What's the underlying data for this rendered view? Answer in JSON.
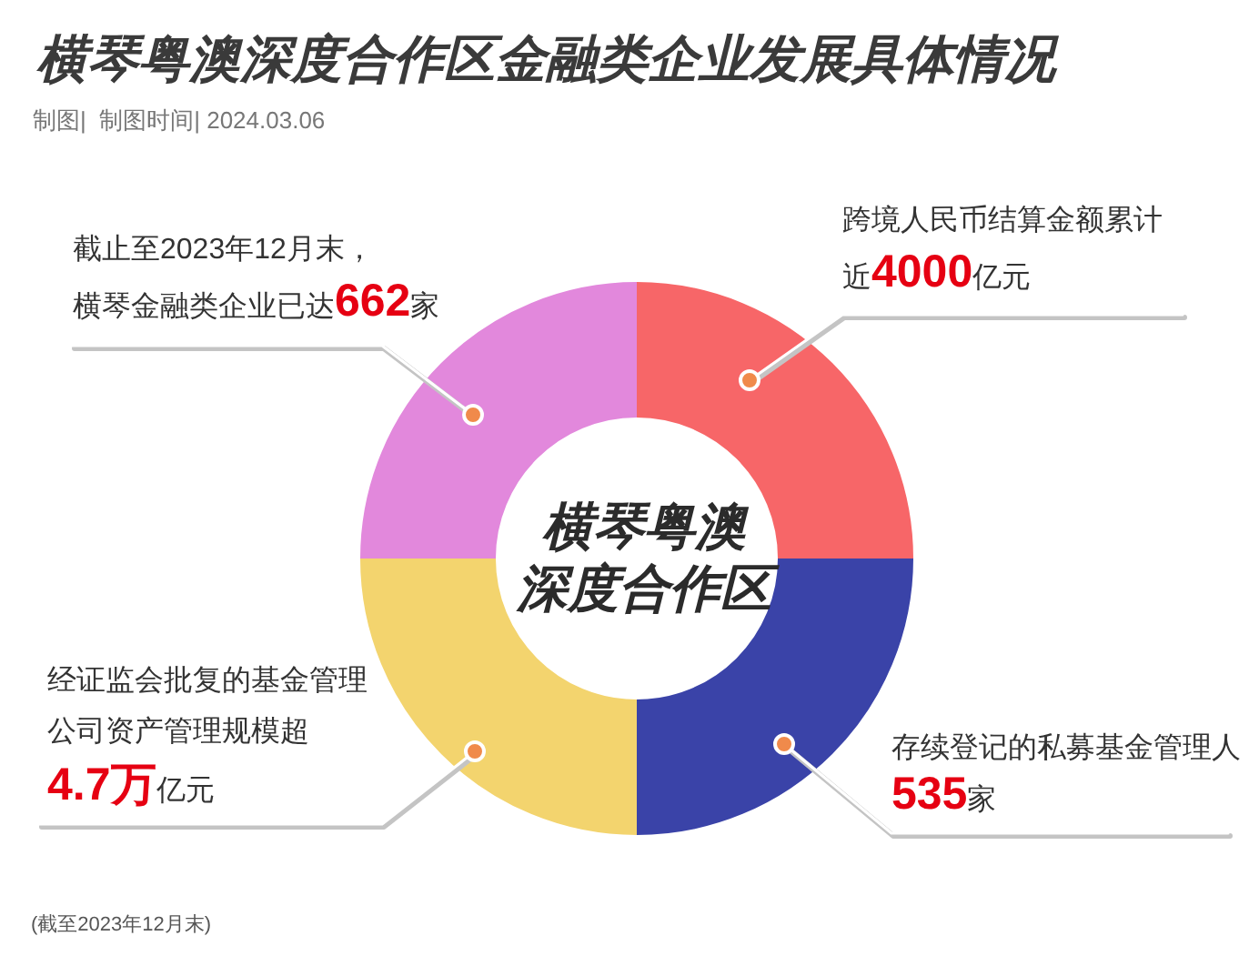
{
  "chart_data": {
    "type": "donut",
    "title": "横琴粤澳深度合作区金融类企业发展具体情况",
    "subtitle": "制图|  制图时间| 2024.03.06",
    "categories": [
      null,
      null,
      null,
      null
    ],
    "values": [
      25,
      25,
      25,
      25
    ],
    "colors": [
      "#f76668",
      "#3a43a8",
      "#f3d46e",
      "#e288dc"
    ],
    "annotations": [
      "截止至2023年12月末，",
      "横琴金融类企业已达",
      "662",
      "家",
      "跨境人民币结算金额累计",
      "近",
      "4000",
      "亿元",
      "经证监会批复的基金管理",
      "公司资产管理规模超",
      "4.7万",
      "亿元",
      "存续登记的私募基金管理人",
      "535",
      "家",
      "横琴粤澳",
      "深度合作区",
      "(截至2023年12月末)"
    ]
  }
}
